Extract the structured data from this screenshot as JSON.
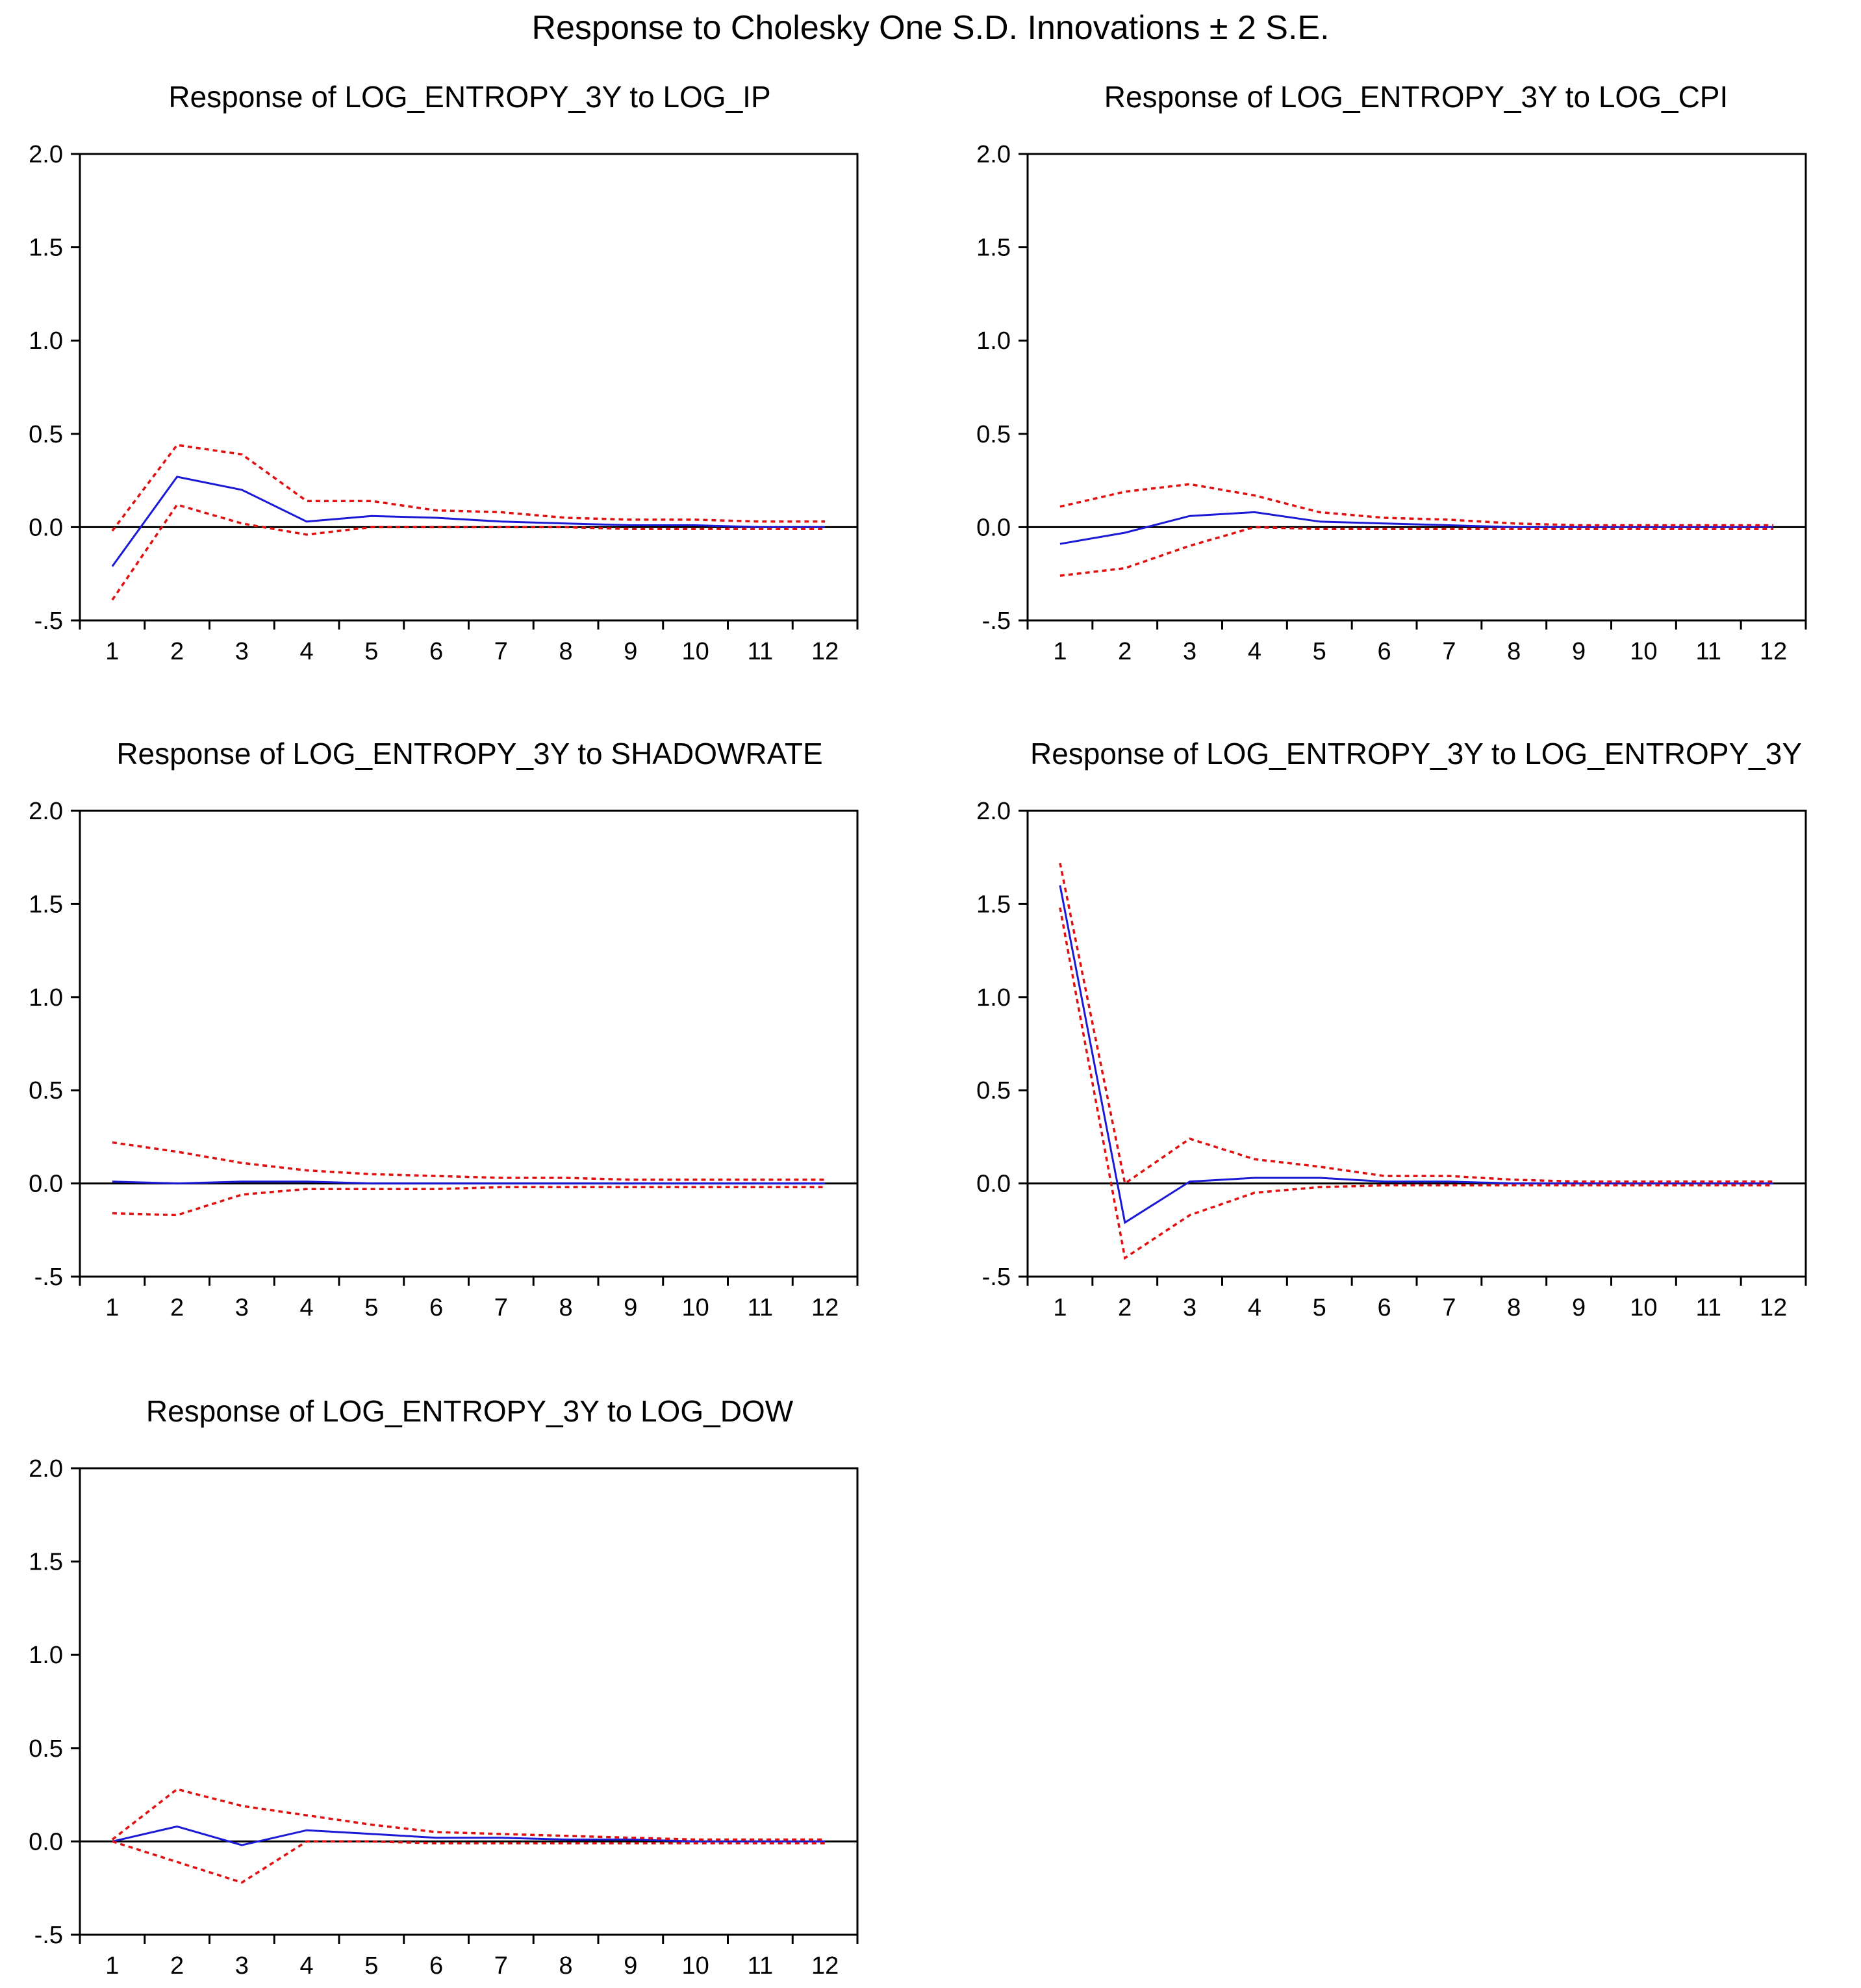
{
  "title": "Response to Cholesky One S.D. Innovations ± 2 S.E.",
  "colors": {
    "response": "#1a1ad6",
    "bands": "#e01010",
    "axis": "#000000"
  },
  "chart_data": [
    {
      "type": "line",
      "title": "Response of LOG_ENTROPY_3Y to LOG_IP",
      "categories": [
        "1",
        "2",
        "3",
        "4",
        "5",
        "6",
        "7",
        "8",
        "9",
        "10",
        "11",
        "12"
      ],
      "ylim": [
        -0.5,
        2.0
      ],
      "yticks": [
        "2.0",
        "1.5",
        "1.0",
        "0.5",
        "0.0",
        "-.5"
      ],
      "yticks_values": [
        2.0,
        1.5,
        1.0,
        0.5,
        0.0,
        -0.5
      ],
      "series": [
        {
          "name": "Response",
          "values": [
            -0.21,
            0.27,
            0.2,
            0.03,
            0.06,
            0.05,
            0.03,
            0.02,
            0.01,
            0.01,
            0.0,
            0.0
          ]
        },
        {
          "name": "+2 S.E.",
          "values": [
            -0.02,
            0.44,
            0.39,
            0.14,
            0.14,
            0.09,
            0.08,
            0.05,
            0.04,
            0.04,
            0.03,
            0.03
          ]
        },
        {
          "name": "-2 S.E.",
          "values": [
            -0.39,
            0.12,
            0.02,
            -0.04,
            0.0,
            0.0,
            0.0,
            0.0,
            -0.01,
            -0.01,
            -0.01,
            -0.01
          ]
        }
      ]
    },
    {
      "type": "line",
      "title": "Response of LOG_ENTROPY_3Y to LOG_CPI",
      "categories": [
        "1",
        "2",
        "3",
        "4",
        "5",
        "6",
        "7",
        "8",
        "9",
        "10",
        "11",
        "12"
      ],
      "ylim": [
        -0.5,
        2.0
      ],
      "yticks": [
        "2.0",
        "1.5",
        "1.0",
        "0.5",
        "0.0",
        "-.5"
      ],
      "yticks_values": [
        2.0,
        1.5,
        1.0,
        0.5,
        0.0,
        -0.5
      ],
      "series": [
        {
          "name": "Response",
          "values": [
            -0.09,
            -0.03,
            0.06,
            0.08,
            0.03,
            0.02,
            0.01,
            0.0,
            0.0,
            0.0,
            0.0,
            0.0
          ]
        },
        {
          "name": "+2 S.E.",
          "values": [
            0.11,
            0.19,
            0.23,
            0.17,
            0.08,
            0.05,
            0.04,
            0.02,
            0.01,
            0.01,
            0.01,
            0.01
          ]
        },
        {
          "name": "-2 S.E.",
          "values": [
            -0.26,
            -0.22,
            -0.1,
            0.0,
            -0.01,
            -0.01,
            -0.01,
            -0.01,
            -0.01,
            -0.01,
            -0.01,
            -0.01
          ]
        }
      ]
    },
    {
      "type": "line",
      "title": "Response of LOG_ENTROPY_3Y to SHADOWRATE",
      "categories": [
        "1",
        "2",
        "3",
        "4",
        "5",
        "6",
        "7",
        "8",
        "9",
        "10",
        "11",
        "12"
      ],
      "ylim": [
        -0.5,
        2.0
      ],
      "yticks": [
        "2.0",
        "1.5",
        "1.0",
        "0.5",
        "0.0",
        "-.5"
      ],
      "yticks_values": [
        2.0,
        1.5,
        1.0,
        0.5,
        0.0,
        -0.5
      ],
      "series": [
        {
          "name": "Response",
          "values": [
            0.01,
            0.0,
            0.01,
            0.01,
            0.0,
            0.0,
            0.0,
            0.0,
            0.0,
            0.0,
            0.0,
            0.0
          ]
        },
        {
          "name": "+2 S.E.",
          "values": [
            0.22,
            0.17,
            0.11,
            0.07,
            0.05,
            0.04,
            0.03,
            0.03,
            0.02,
            0.02,
            0.02,
            0.02
          ]
        },
        {
          "name": "-2 S.E.",
          "values": [
            -0.16,
            -0.17,
            -0.06,
            -0.03,
            -0.03,
            -0.03,
            -0.02,
            -0.02,
            -0.02,
            -0.02,
            -0.02,
            -0.02
          ]
        }
      ]
    },
    {
      "type": "line",
      "title": "Response of LOG_ENTROPY_3Y to LOG_ENTROPY_3Y",
      "categories": [
        "1",
        "2",
        "3",
        "4",
        "5",
        "6",
        "7",
        "8",
        "9",
        "10",
        "11",
        "12"
      ],
      "ylim": [
        -0.5,
        2.0
      ],
      "yticks": [
        "2.0",
        "1.5",
        "1.0",
        "0.5",
        "0.0",
        "-.5"
      ],
      "yticks_values": [
        2.0,
        1.5,
        1.0,
        0.5,
        0.0,
        -0.5
      ],
      "series": [
        {
          "name": "Response",
          "values": [
            1.6,
            -0.21,
            0.01,
            0.03,
            0.03,
            0.01,
            0.01,
            0.0,
            0.0,
            0.0,
            0.0,
            0.0
          ]
        },
        {
          "name": "+2 S.E.",
          "values": [
            1.72,
            0.0,
            0.24,
            0.13,
            0.09,
            0.04,
            0.04,
            0.02,
            0.01,
            0.01,
            0.01,
            0.01
          ]
        },
        {
          "name": "-2 S.E.",
          "values": [
            1.48,
            -0.4,
            -0.17,
            -0.05,
            -0.02,
            -0.01,
            -0.01,
            -0.01,
            -0.01,
            -0.01,
            -0.01,
            -0.01
          ]
        }
      ]
    },
    {
      "type": "line",
      "title": "Response of LOG_ENTROPY_3Y to LOG_DOW",
      "categories": [
        "1",
        "2",
        "3",
        "4",
        "5",
        "6",
        "7",
        "8",
        "9",
        "10",
        "11",
        "12"
      ],
      "ylim": [
        -0.5,
        2.0
      ],
      "yticks": [
        "2.0",
        "1.5",
        "1.0",
        "0.5",
        "0.0",
        "-.5"
      ],
      "yticks_values": [
        2.0,
        1.5,
        1.0,
        0.5,
        0.0,
        -0.5
      ],
      "series": [
        {
          "name": "Response",
          "values": [
            0.0,
            0.08,
            -0.02,
            0.06,
            0.04,
            0.02,
            0.02,
            0.01,
            0.01,
            0.0,
            0.0,
            0.0
          ]
        },
        {
          "name": "+2 S.E.",
          "values": [
            0.01,
            0.28,
            0.19,
            0.14,
            0.09,
            0.05,
            0.04,
            0.03,
            0.02,
            0.01,
            0.01,
            0.01
          ]
        },
        {
          "name": "-2 S.E.",
          "values": [
            0.0,
            -0.11,
            -0.22,
            0.0,
            0.0,
            -0.01,
            -0.01,
            -0.01,
            -0.01,
            -0.01,
            -0.01,
            -0.01
          ]
        }
      ]
    }
  ]
}
